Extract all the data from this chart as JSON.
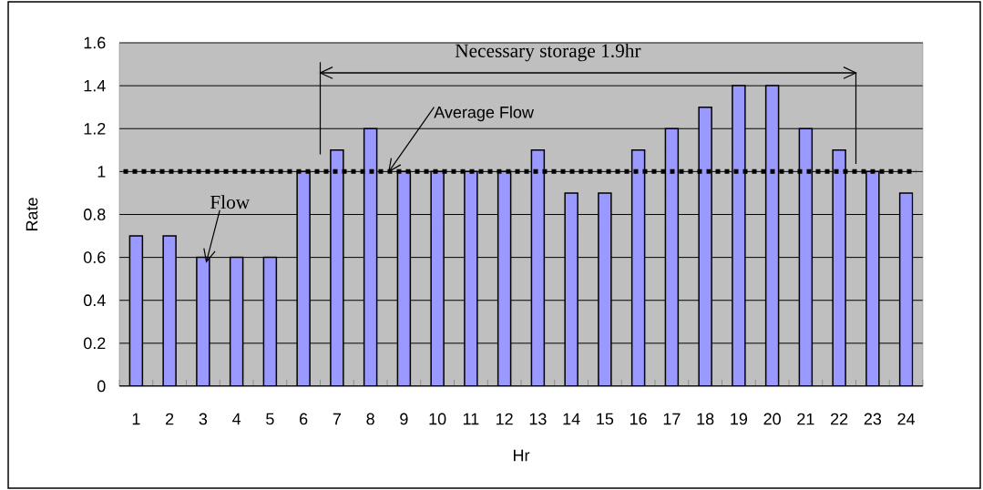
{
  "chart_data": {
    "type": "bar",
    "xlabel": "Hr",
    "ylabel": "Rate",
    "categories": [
      "1",
      "2",
      "3",
      "4",
      "5",
      "6",
      "7",
      "8",
      "9",
      "10",
      "11",
      "12",
      "13",
      "14",
      "15",
      "16",
      "17",
      "18",
      "19",
      "20",
      "21",
      "22",
      "23",
      "24"
    ],
    "values": [
      0.7,
      0.7,
      0.6,
      0.6,
      0.6,
      1.0,
      1.1,
      1.2,
      1.0,
      1.0,
      1.0,
      1.0,
      1.1,
      0.9,
      0.9,
      1.1,
      1.2,
      1.3,
      1.4,
      1.4,
      1.2,
      1.1,
      1.0,
      0.9
    ],
    "color": "#9999ff",
    "ylim": [
      0,
      1.6
    ],
    "yticks": [
      0,
      0.2,
      0.4,
      0.6,
      0.8,
      1,
      1.2,
      1.4,
      1.6
    ],
    "grid": "y",
    "ref_lines": [
      {
        "axis": "y",
        "value": 1,
        "label": "Average Flow",
        "color": "#000000",
        "line_style": "dotted"
      }
    ],
    "annotations": [
      {
        "text": "Flow",
        "x": "3",
        "y": 0.6
      },
      "Necessary storage  1.9hr"
    ]
  }
}
